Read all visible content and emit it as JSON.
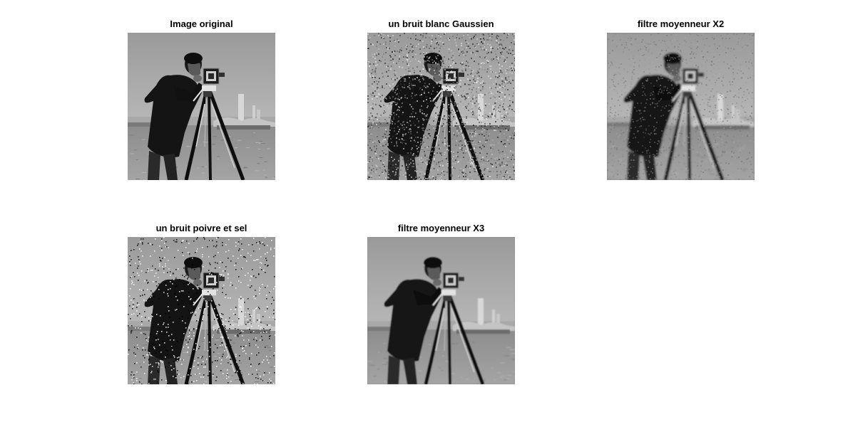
{
  "figure": {
    "background": "#ffffff",
    "subplots": [
      {
        "id": "original",
        "title": "Image original",
        "variant": "original"
      },
      {
        "id": "gaussian",
        "title": "un bruit blanc Gaussien",
        "variant": "gaussian"
      },
      {
        "id": "mean2",
        "title": "filtre moyenneur X2",
        "variant": "mean2"
      },
      {
        "id": "saltpepper",
        "title": "un bruit poivre et sel",
        "variant": "saltpepper"
      },
      {
        "id": "mean3",
        "title": "filtre moyenneur X3",
        "variant": "mean3"
      }
    ]
  }
}
